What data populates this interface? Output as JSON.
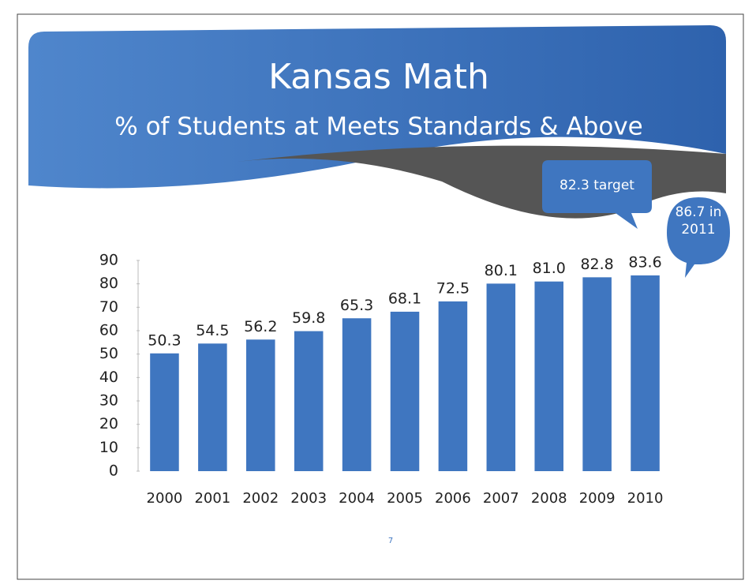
{
  "chart_data": {
    "type": "bar",
    "title": "Kansas Math",
    "subtitle": "% of Students at Meets Standards & Above",
    "categories": [
      "2000",
      "2001",
      "2002",
      "2003",
      "2004",
      "2005",
      "2006",
      "2007",
      "2008",
      "2009",
      "2010"
    ],
    "values": [
      50.3,
      54.5,
      56.2,
      59.8,
      65.3,
      68.1,
      72.5,
      80.1,
      81.0,
      82.8,
      83.6
    ],
    "value_labels": [
      "50.3",
      "54.5",
      "56.2",
      "59.8",
      "65.3",
      "68.1",
      "72.5",
      "80.1",
      "81.0",
      "82.8",
      "83.6"
    ],
    "color": "#3f76c0",
    "ylim": [
      0,
      90
    ],
    "yticks": [
      0,
      10,
      20,
      30,
      40,
      50,
      60,
      70,
      80,
      90
    ],
    "annotations": [
      "82.3 target",
      "86.7 in 2011"
    ],
    "page_number": "7"
  }
}
